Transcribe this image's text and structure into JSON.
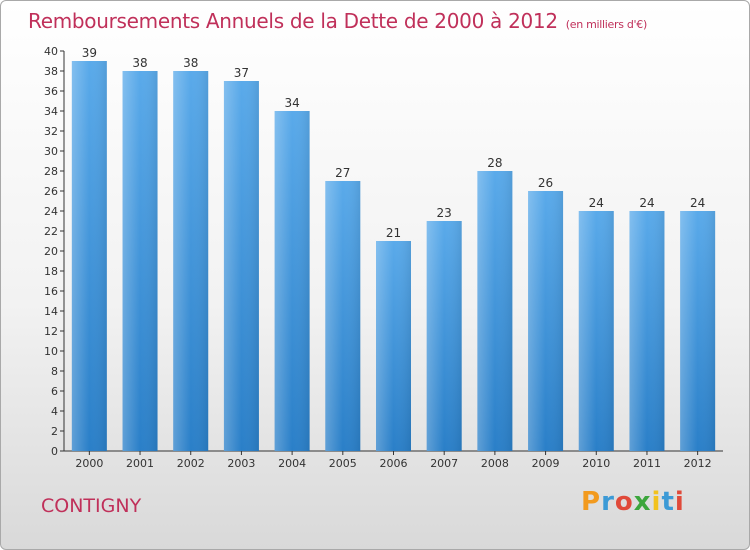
{
  "header": {
    "title": "Remboursements Annuels de la Dette de 2000 à 2012",
    "unit": "(en milliers d'€)"
  },
  "footer": {
    "commune": "CONTIGNY",
    "logo_text": "Proxiti"
  },
  "colors": {
    "title": "#c0305a",
    "bar_top": "#5aaaea",
    "bar_bottom": "#2a7fc8",
    "logo": [
      "#f29a1e",
      "#3c9ad6",
      "#e04a3a",
      "#3ca63c",
      "#f2c21e",
      "#3c9ad6",
      "#e04a3a"
    ]
  },
  "chart_data": {
    "type": "bar",
    "title": "Remboursements Annuels de la Dette de 2000 à 2012",
    "subtitle": "(en milliers d'€)",
    "categories": [
      "2000",
      "2001",
      "2002",
      "2003",
      "2004",
      "2005",
      "2006",
      "2007",
      "2008",
      "2009",
      "2010",
      "2011",
      "2012"
    ],
    "values": [
      39,
      38,
      38,
      37,
      34,
      27,
      21,
      23,
      28,
      26,
      24,
      24,
      24
    ],
    "yticks": [
      0,
      2,
      4,
      6,
      8,
      10,
      12,
      14,
      16,
      18,
      20,
      22,
      24,
      26,
      28,
      30,
      32,
      34,
      36,
      38,
      40
    ],
    "ylim": [
      0,
      40
    ],
    "grid": false,
    "legend": "none"
  }
}
